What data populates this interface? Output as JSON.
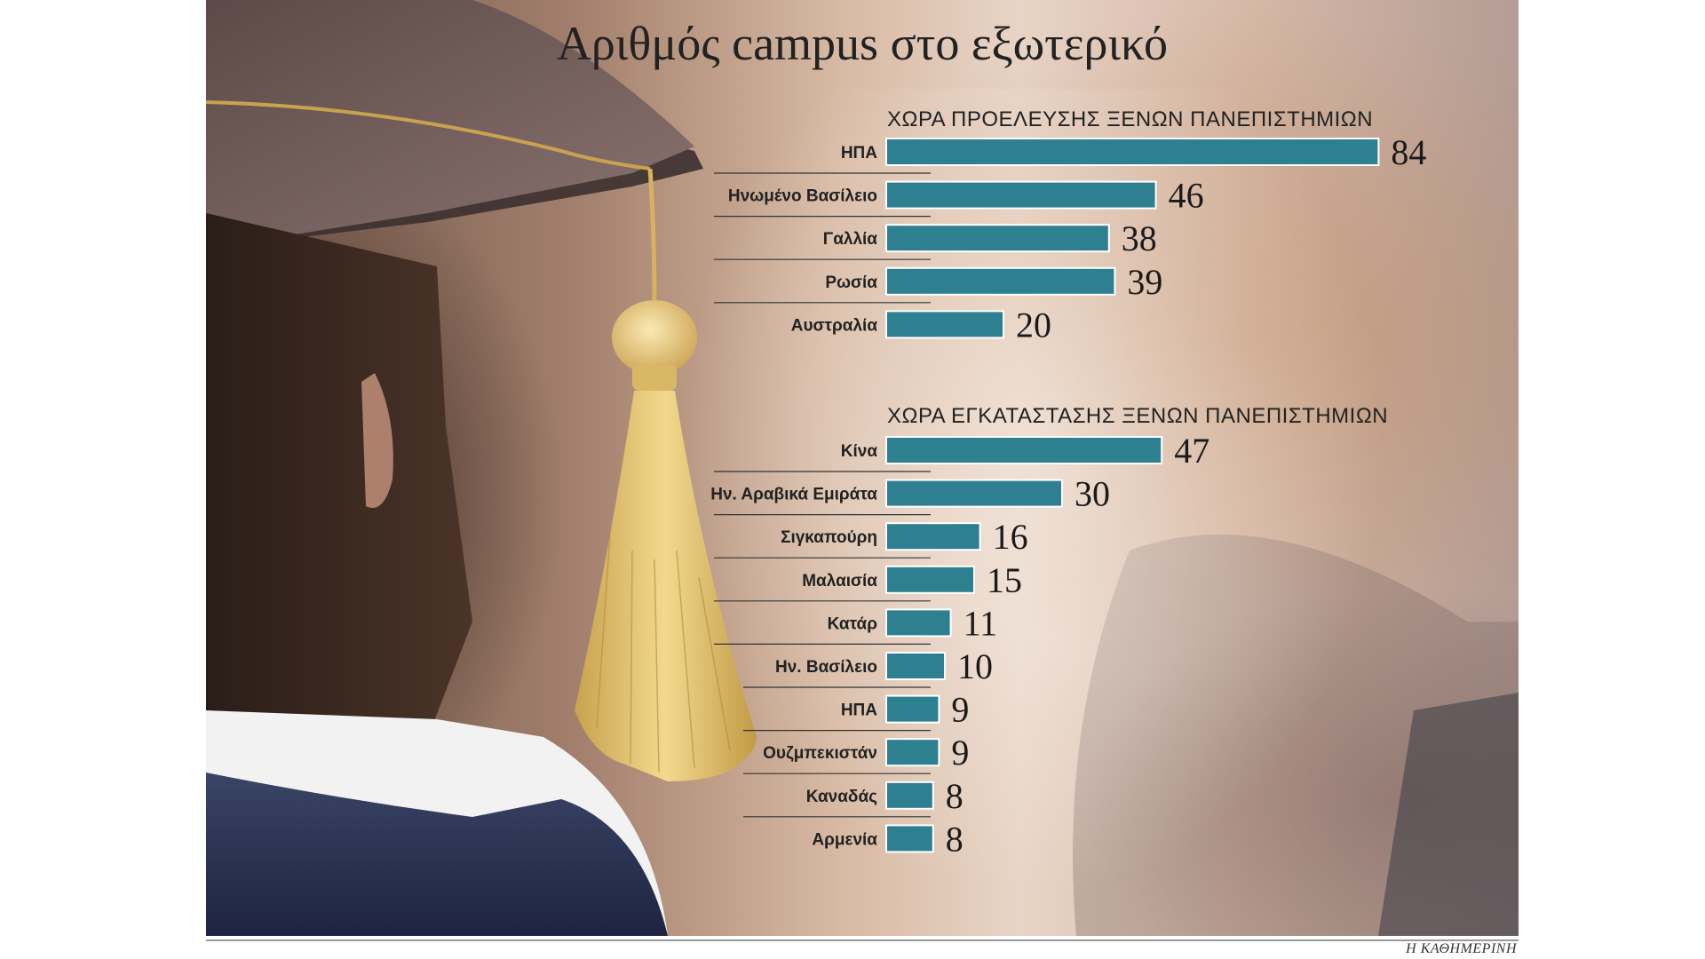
{
  "chart_data": [
    {
      "type": "bar",
      "orientation": "horizontal",
      "title": "Αριθμός campus στο εξωτερικό",
      "subtitle": "ΧΩΡΑ ΠΡΟΕΛΕΥΣΗΣ ΞΕΝΩΝ ΠΑΝΕΠΙΣΤΗΜΙΩΝ",
      "categories": [
        "ΗΠΑ",
        "Ηνωμένο Βασίλειο",
        "Γαλλία",
        "Ρωσία",
        "Αυστραλία"
      ],
      "values": [
        84,
        46,
        38,
        39,
        20
      ],
      "bar_color": "#2e7f8f",
      "data_labels": true,
      "grid": false,
      "legend": "none"
    },
    {
      "type": "bar",
      "orientation": "horizontal",
      "subtitle": "ΧΩΡΑ ΕΓΚΑΤΑΣΤΑΣΗΣ ΞΕΝΩΝ ΠΑΝΕΠΙΣΤΗΜΙΩΝ",
      "categories": [
        "Κίνα",
        "Ην. Αραβικά Εμιράτα",
        "Σιγκαπούρη",
        "Μαλαισία",
        "Κατάρ",
        "Ην. Βασίλειο",
        "ΗΠΑ",
        "Ουζμπεκιστάν",
        "Καναδάς",
        "Αρμενία"
      ],
      "values": [
        47,
        30,
        16,
        15,
        11,
        10,
        9,
        9,
        8,
        8
      ],
      "bar_color": "#2e7f8f",
      "data_labels": true,
      "grid": false,
      "legend": "none"
    }
  ],
  "credit": "Η ΚΑΘΗΜΕΡΙΝΗ"
}
